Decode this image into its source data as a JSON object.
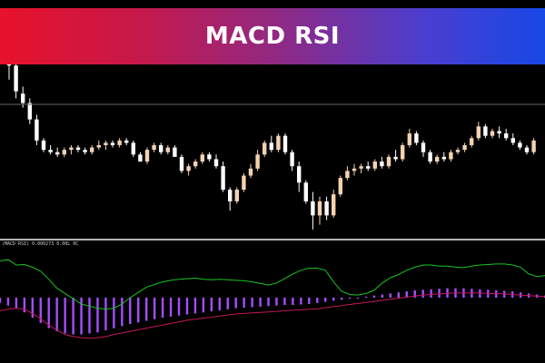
{
  "banner": {
    "title": "MACD RSI"
  },
  "colors": {
    "bull_candle": "#f5d2b0",
    "bear_candle": "#ffffff",
    "rsi_line": "#19c21f",
    "macd_hist": "#a64dff",
    "signal_line": "#c2185b",
    "separator": "#b5b5b5",
    "background": "#000000"
  },
  "chart_data": [
    {
      "type": "candlestick",
      "title": "",
      "grid": false,
      "ylim": [
        0,
        100
      ],
      "candles": [
        {
          "o": 88,
          "h": 94,
          "l": 66,
          "c": 72
        },
        {
          "o": 72,
          "h": 76,
          "l": 58,
          "c": 61
        },
        {
          "o": 60,
          "h": 63,
          "l": 54,
          "c": 56
        },
        {
          "o": 56,
          "h": 58,
          "l": 47,
          "c": 49
        },
        {
          "o": 49,
          "h": 51,
          "l": 38,
          "c": 40
        },
        {
          "o": 40,
          "h": 41,
          "l": 35,
          "c": 36
        },
        {
          "o": 36,
          "h": 38,
          "l": 34,
          "c": 35
        },
        {
          "o": 35,
          "h": 37,
          "l": 33,
          "c": 34
        },
        {
          "o": 34,
          "h": 37,
          "l": 33,
          "c": 36
        },
        {
          "o": 36,
          "h": 38,
          "l": 34,
          "c": 37
        },
        {
          "o": 37,
          "h": 38,
          "l": 35,
          "c": 36
        },
        {
          "o": 36,
          "h": 37,
          "l": 34,
          "c": 35
        },
        {
          "o": 35,
          "h": 38,
          "l": 34,
          "c": 37
        },
        {
          "o": 37,
          "h": 40,
          "l": 36,
          "c": 38
        },
        {
          "o": 38,
          "h": 40,
          "l": 36,
          "c": 39
        },
        {
          "o": 39,
          "h": 40,
          "l": 37,
          "c": 38
        },
        {
          "o": 38,
          "h": 41,
          "l": 37,
          "c": 40
        },
        {
          "o": 40,
          "h": 41,
          "l": 38,
          "c": 39
        },
        {
          "o": 39,
          "h": 40,
          "l": 33,
          "c": 34
        },
        {
          "o": 34,
          "h": 35,
          "l": 31,
          "c": 31
        },
        {
          "o": 31,
          "h": 37,
          "l": 30,
          "c": 36
        },
        {
          "o": 36,
          "h": 39,
          "l": 35,
          "c": 38
        },
        {
          "o": 38,
          "h": 39,
          "l": 34,
          "c": 35
        },
        {
          "o": 35,
          "h": 38,
          "l": 34,
          "c": 37
        },
        {
          "o": 37,
          "h": 38,
          "l": 33,
          "c": 33
        },
        {
          "o": 33,
          "h": 34,
          "l": 26,
          "c": 27
        },
        {
          "o": 27,
          "h": 30,
          "l": 25,
          "c": 29
        },
        {
          "o": 29,
          "h": 32,
          "l": 28,
          "c": 31
        },
        {
          "o": 31,
          "h": 35,
          "l": 30,
          "c": 34
        },
        {
          "o": 34,
          "h": 35,
          "l": 31,
          "c": 32
        },
        {
          "o": 32,
          "h": 34,
          "l": 28,
          "c": 29
        },
        {
          "o": 29,
          "h": 31,
          "l": 18,
          "c": 19
        },
        {
          "o": 19,
          "h": 20,
          "l": 10,
          "c": 14
        },
        {
          "o": 14,
          "h": 20,
          "l": 13,
          "c": 19
        },
        {
          "o": 19,
          "h": 26,
          "l": 18,
          "c": 25
        },
        {
          "o": 25,
          "h": 30,
          "l": 24,
          "c": 28
        },
        {
          "o": 28,
          "h": 36,
          "l": 27,
          "c": 34
        },
        {
          "o": 34,
          "h": 40,
          "l": 33,
          "c": 39
        },
        {
          "o": 39,
          "h": 42,
          "l": 35,
          "c": 36
        },
        {
          "o": 36,
          "h": 43,
          "l": 35,
          "c": 42
        },
        {
          "o": 42,
          "h": 43,
          "l": 34,
          "c": 35
        },
        {
          "o": 35,
          "h": 36,
          "l": 27,
          "c": 29
        },
        {
          "o": 29,
          "h": 31,
          "l": 18,
          "c": 22
        },
        {
          "o": 22,
          "h": 23,
          "l": 13,
          "c": 14
        },
        {
          "o": 14,
          "h": 18,
          "l": 2,
          "c": 8
        },
        {
          "o": 8,
          "h": 16,
          "l": 4,
          "c": 14
        },
        {
          "o": 14,
          "h": 16,
          "l": 6,
          "c": 8
        },
        {
          "o": 8,
          "h": 19,
          "l": 7,
          "c": 17
        },
        {
          "o": 17,
          "h": 25,
          "l": 16,
          "c": 24
        },
        {
          "o": 24,
          "h": 29,
          "l": 23,
          "c": 27
        },
        {
          "o": 27,
          "h": 30,
          "l": 25,
          "c": 28
        },
        {
          "o": 28,
          "h": 30,
          "l": 26,
          "c": 29
        },
        {
          "o": 29,
          "h": 31,
          "l": 27,
          "c": 28
        },
        {
          "o": 28,
          "h": 32,
          "l": 27,
          "c": 31
        },
        {
          "o": 31,
          "h": 33,
          "l": 28,
          "c": 29
        },
        {
          "o": 29,
          "h": 34,
          "l": 28,
          "c": 33
        },
        {
          "o": 33,
          "h": 36,
          "l": 31,
          "c": 32
        },
        {
          "o": 32,
          "h": 39,
          "l": 31,
          "c": 38
        },
        {
          "o": 38,
          "h": 45,
          "l": 37,
          "c": 43
        },
        {
          "o": 43,
          "h": 44,
          "l": 38,
          "c": 39
        },
        {
          "o": 39,
          "h": 40,
          "l": 33,
          "c": 35
        },
        {
          "o": 35,
          "h": 36,
          "l": 30,
          "c": 31
        },
        {
          "o": 31,
          "h": 34,
          "l": 30,
          "c": 33
        },
        {
          "o": 33,
          "h": 35,
          "l": 31,
          "c": 32
        },
        {
          "o": 32,
          "h": 36,
          "l": 31,
          "c": 35
        },
        {
          "o": 35,
          "h": 37,
          "l": 34,
          "c": 36
        },
        {
          "o": 36,
          "h": 39,
          "l": 35,
          "c": 38
        },
        {
          "o": 38,
          "h": 42,
          "l": 37,
          "c": 41
        },
        {
          "o": 41,
          "h": 48,
          "l": 40,
          "c": 46
        },
        {
          "o": 46,
          "h": 47,
          "l": 41,
          "c": 42
        },
        {
          "o": 42,
          "h": 45,
          "l": 41,
          "c": 44
        },
        {
          "o": 44,
          "h": 46,
          "l": 41,
          "c": 43
        },
        {
          "o": 43,
          "h": 45,
          "l": 40,
          "c": 41
        },
        {
          "o": 41,
          "h": 43,
          "l": 38,
          "c": 39
        },
        {
          "o": 39,
          "h": 40,
          "l": 36,
          "c": 37
        },
        {
          "o": 37,
          "h": 38,
          "l": 34,
          "c": 35
        },
        {
          "o": 35,
          "h": 41,
          "l": 34,
          "c": 40
        }
      ]
    },
    {
      "type": "line+histogram",
      "title": "",
      "indicator_label": "(MACD RSI) 0.000273 0.00L 0C",
      "ylim": [
        -100,
        100
      ],
      "rsi": [
        70,
        72,
        62,
        63,
        58,
        50,
        35,
        18,
        8,
        -2,
        -12,
        -16,
        -20,
        -22,
        -20,
        -12,
        0,
        10,
        20,
        25,
        30,
        33,
        35,
        36,
        37,
        35,
        34,
        35,
        34,
        33,
        32,
        30,
        27,
        24,
        28,
        36,
        45,
        52,
        56,
        56,
        52,
        30,
        12,
        6,
        5,
        8,
        14,
        28,
        38,
        44,
        52,
        58,
        62,
        62,
        60,
        60,
        58,
        57,
        60,
        62,
        63,
        64,
        64,
        62,
        58,
        45,
        40,
        42
      ],
      "hist": [
        -10,
        -15,
        -20,
        -28,
        -38,
        -48,
        -58,
        -64,
        -68,
        -70,
        -70,
        -68,
        -66,
        -62,
        -58,
        -54,
        -50,
        -47,
        -44,
        -41,
        -38,
        -36,
        -34,
        -32,
        -30,
        -28,
        -26,
        -24,
        -22,
        -20,
        -19,
        -18,
        -17,
        -16,
        -15,
        -14,
        -14,
        -13,
        -12,
        -10,
        -8,
        -6,
        -4,
        -2,
        0,
        2,
        4,
        6,
        8,
        10,
        12,
        14,
        15,
        16,
        17,
        18,
        18,
        18,
        17,
        16,
        15,
        14,
        13,
        12,
        10,
        8,
        6,
        4
      ],
      "signal": [
        -25,
        -22,
        -20,
        -22,
        -30,
        -40,
        -52,
        -62,
        -70,
        -74,
        -76,
        -77,
        -76,
        -74,
        -70,
        -67,
        -64,
        -61,
        -58,
        -55,
        -52,
        -49,
        -46,
        -43,
        -41,
        -39,
        -37,
        -35,
        -33,
        -31,
        -30,
        -29,
        -28,
        -27,
        -26,
        -25,
        -24,
        -23,
        -22,
        -21,
        -19,
        -17,
        -15,
        -13,
        -11,
        -9,
        -7,
        -5,
        -3,
        -1,
        1,
        3,
        5,
        6,
        7,
        8,
        9,
        9,
        9,
        9,
        8,
        8,
        7,
        6,
        5,
        4,
        3,
        2
      ]
    }
  ]
}
